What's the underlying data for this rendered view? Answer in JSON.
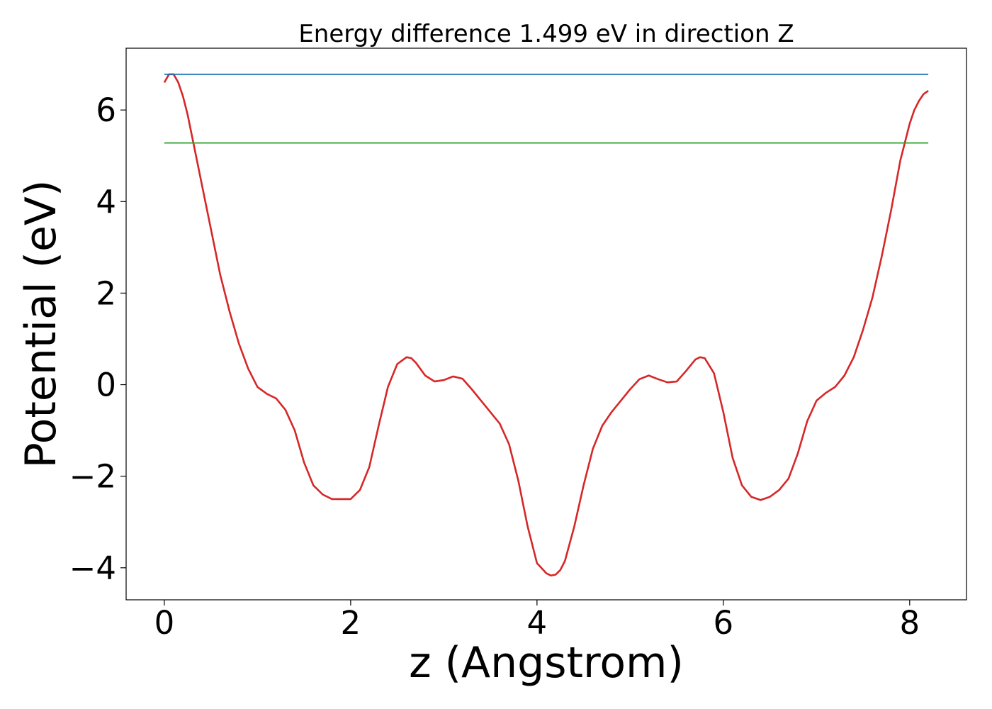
{
  "chart_data": {
    "type": "line",
    "title": "Energy difference 1.499 eV in direction Z",
    "xlabel": "z (Angstrom)",
    "ylabel": "Potential (eV)",
    "xlim": [
      -0.41,
      8.61
    ],
    "ylim": [
      -4.7,
      7.35
    ],
    "xticks": [
      0,
      2,
      4,
      6,
      8
    ],
    "xtick_labels": [
      "0",
      "2",
      "4",
      "6",
      "8"
    ],
    "yticks": [
      -4,
      -2,
      0,
      2,
      4,
      6
    ],
    "ytick_labels": [
      "−4",
      "−2",
      "0",
      "2",
      "4",
      "6"
    ],
    "grid": false,
    "series": [
      {
        "color": "#d62728",
        "x": [
          0.0,
          0.05,
          0.1,
          0.15,
          0.2,
          0.25,
          0.3,
          0.35,
          0.4,
          0.5,
          0.6,
          0.7,
          0.8,
          0.9,
          1.0,
          1.1,
          1.2,
          1.3,
          1.4,
          1.5,
          1.6,
          1.7,
          1.8,
          1.9,
          2.0,
          2.1,
          2.2,
          2.3,
          2.4,
          2.5,
          2.6,
          2.65,
          2.7,
          2.8,
          2.9,
          3.0,
          3.1,
          3.2,
          3.3,
          3.4,
          3.5,
          3.6,
          3.7,
          3.8,
          3.9,
          4.0,
          4.1,
          4.15,
          4.2,
          4.25,
          4.3,
          4.4,
          4.5,
          4.6,
          4.7,
          4.8,
          4.9,
          5.0,
          5.1,
          5.2,
          5.3,
          5.4,
          5.5,
          5.6,
          5.7,
          5.75,
          5.8,
          5.9,
          6.0,
          6.1,
          6.2,
          6.3,
          6.4,
          6.5,
          6.6,
          6.7,
          6.8,
          6.9,
          7.0,
          7.1,
          7.2,
          7.3,
          7.4,
          7.5,
          7.6,
          7.7,
          7.8,
          7.9,
          8.0,
          8.05,
          8.1,
          8.15,
          8.2
        ],
        "values": [
          6.6,
          6.78,
          6.78,
          6.6,
          6.3,
          5.9,
          5.4,
          4.9,
          4.4,
          3.4,
          2.4,
          1.6,
          0.9,
          0.35,
          -0.05,
          -0.2,
          -0.3,
          -0.55,
          -1.0,
          -1.7,
          -2.2,
          -2.4,
          -2.5,
          -2.5,
          -2.5,
          -2.3,
          -1.8,
          -0.9,
          -0.05,
          0.45,
          0.6,
          0.58,
          0.48,
          0.2,
          0.07,
          0.1,
          0.18,
          0.13,
          -0.1,
          -0.35,
          -0.6,
          -0.85,
          -1.3,
          -2.1,
          -3.1,
          -3.9,
          -4.12,
          -4.17,
          -4.15,
          -4.05,
          -3.85,
          -3.1,
          -2.2,
          -1.4,
          -0.9,
          -0.6,
          -0.35,
          -0.1,
          0.12,
          0.2,
          0.12,
          0.05,
          0.07,
          0.3,
          0.55,
          0.6,
          0.58,
          0.25,
          -0.6,
          -1.6,
          -2.2,
          -2.45,
          -2.52,
          -2.45,
          -2.3,
          -2.05,
          -1.5,
          -0.8,
          -0.35,
          -0.18,
          -0.05,
          0.2,
          0.6,
          1.2,
          1.9,
          2.8,
          3.8,
          4.9,
          5.7,
          6.0,
          6.2,
          6.35,
          6.42
        ]
      },
      {
        "color": "#1f77b4",
        "x": [
          0.0,
          8.2
        ],
        "values": [
          6.78,
          6.78
        ]
      },
      {
        "color": "#2ca02c",
        "x": [
          0.0,
          8.2
        ],
        "values": [
          5.28,
          5.28
        ]
      }
    ]
  }
}
